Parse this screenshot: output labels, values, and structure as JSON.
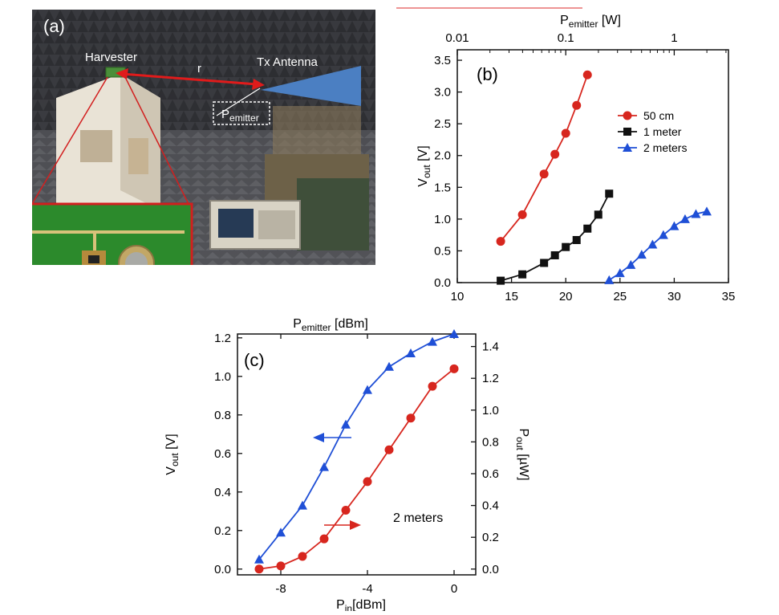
{
  "panel_a": {
    "label": "(a)",
    "harvester_label": "Harvester",
    "distance_label": "r",
    "antenna_label": "Tx Antenna",
    "emitter_label_main": "P",
    "emitter_label_sub": "emitter"
  },
  "chart_data": [
    {
      "type": "line",
      "panel_label": "(b)",
      "xlabel": "",
      "ylabel_main": "V",
      "ylabel_sub": "out",
      "ylabel_unit": " [V]",
      "top_axis_label_main": "P",
      "top_axis_label_sub": "emitter",
      "top_axis_label_unit": " [W]",
      "top_axis_scale": "log",
      "top_axis_ticks": [
        "0.01",
        "0.1",
        "1"
      ],
      "top_axis_tick_values": [
        0.01,
        0.1,
        1
      ],
      "xlim": [
        10,
        35
      ],
      "ylim": [
        0,
        3.5
      ],
      "xticks": [
        10,
        15,
        20,
        25,
        30,
        35
      ],
      "xtick_labels": [
        "10",
        "15",
        "20",
        "25",
        "30",
        "35"
      ],
      "yticks": [
        0,
        0.5,
        1,
        1.5,
        2,
        2.5,
        3,
        3.5
      ],
      "ytick_labels": [
        "0.0",
        "0.5",
        "1.0",
        "1.5",
        "2.0",
        "2.5",
        "3.0",
        "3.5"
      ],
      "legend_position": "top-right",
      "series": [
        {
          "name": "50 cm",
          "color": "#d7261e",
          "marker": "circle",
          "x": [
            14,
            16,
            18,
            19,
            20,
            21,
            22
          ],
          "y": [
            0.65,
            1.07,
            1.71,
            2.02,
            2.35,
            2.79,
            3.27
          ]
        },
        {
          "name": "1 meter",
          "color": "#111111",
          "marker": "square",
          "x": [
            14,
            16,
            18,
            19,
            20,
            21,
            22,
            23,
            24
          ],
          "y": [
            0.03,
            0.13,
            0.31,
            0.43,
            0.56,
            0.67,
            0.85,
            1.07,
            1.4
          ]
        },
        {
          "name": "2 meters",
          "color": "#1f4fd6",
          "marker": "triangle",
          "x": [
            24,
            25,
            26,
            27,
            28,
            29,
            30,
            31,
            32,
            33
          ],
          "y": [
            0.04,
            0.15,
            0.28,
            0.44,
            0.6,
            0.75,
            0.89,
            1.0,
            1.08,
            1.12
          ]
        }
      ]
    },
    {
      "type": "line",
      "panel_label": "(c)",
      "xlabel_main": "P",
      "xlabel_sub": "in",
      "xlabel_unit": "[dBm]",
      "top_axis_label_main": "P",
      "top_axis_label_sub": "emitter",
      "top_axis_label_unit": " [dBm]",
      "ylabel_main": "V",
      "ylabel_sub": "out",
      "ylabel_unit": " [V]",
      "y2label_main": "P",
      "y2label_sub": "out",
      "y2label_unit": " [µW]",
      "xlim": [
        -10,
        1
      ],
      "ylim": [
        -0.03,
        1.22
      ],
      "y2lim": [
        -0.0364,
        1.4788
      ],
      "xticks": [
        -8,
        -4,
        0
      ],
      "xtick_labels": [
        "-8",
        "-4",
        "0"
      ],
      "yticks": [
        0,
        0.2,
        0.4,
        0.6,
        0.8,
        1.0,
        1.2
      ],
      "ytick_labels": [
        "0.0",
        "0.2",
        "0.4",
        "0.6",
        "0.8",
        "1.0",
        "1.2"
      ],
      "y2ticks": [
        0,
        0.2,
        0.4,
        0.6,
        0.8,
        1.0,
        1.2,
        1.4
      ],
      "y2tick_labels": [
        "0.0",
        "0.2",
        "0.4",
        "0.6",
        "0.8",
        "1.0",
        "1.2",
        "1.4"
      ],
      "annotation": "2 meters",
      "series": [
        {
          "name": "",
          "axis": "left",
          "color": "#1f4fd6",
          "marker": "triangle",
          "x": [
            -9,
            -8,
            -7,
            -6,
            -5,
            -4,
            -3,
            -2,
            -1,
            0
          ],
          "y": [
            0.05,
            0.19,
            0.33,
            0.53,
            0.75,
            0.93,
            1.05,
            1.12,
            1.18,
            1.22
          ]
        },
        {
          "name": "",
          "axis": "right",
          "color": "#d7261e",
          "marker": "circle",
          "x": [
            -9,
            -8,
            -7,
            -6,
            -5,
            -4,
            -3,
            -2,
            -1,
            0
          ],
          "y": [
            0.0,
            0.02,
            0.08,
            0.19,
            0.37,
            0.55,
            0.75,
            0.95,
            1.15,
            1.26
          ]
        }
      ]
    }
  ]
}
